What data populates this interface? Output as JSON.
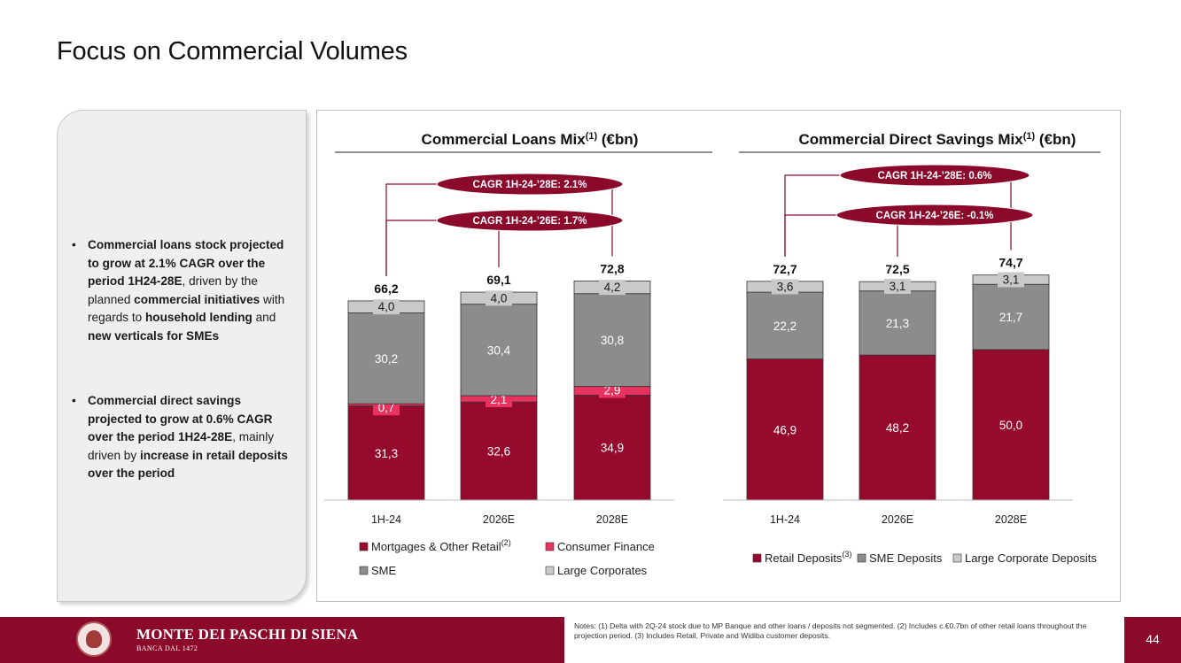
{
  "page": {
    "title": "Focus on Commercial Volumes",
    "page_number": "44"
  },
  "left_panel": {
    "bullets": [
      [
        {
          "text": "Commercial loans stock projected to grow at 2.1% CAGR over the period 1H24-28E",
          "bold": true
        },
        {
          "text": ", driven by the planned ",
          "bold": false
        },
        {
          "text": "commercial initiatives",
          "bold": true
        },
        {
          "text": " with regards to ",
          "bold": false
        },
        {
          "text": "household lending",
          "bold": true
        },
        {
          "text": " and ",
          "bold": false
        },
        {
          "text": "new verticals for SMEs",
          "bold": true
        }
      ],
      [
        {
          "text": "Commercial direct savings projected to grow at 0.6% CAGR over the period 1H24-28E",
          "bold": true
        },
        {
          "text": ", mainly driven by ",
          "bold": false
        },
        {
          "text": "increase in retail deposits over the period",
          "bold": true
        }
      ]
    ]
  },
  "colors": {
    "retail": "#960a2e",
    "consumer": "#e8335f",
    "sme": "#8c8c8c",
    "large": "#c9c9c9",
    "cagr_pill": "#8b0a2c"
  },
  "chart_data": [
    {
      "type": "bar",
      "stacked": true,
      "title": "Commercial Loans Mix",
      "title_superscript": "(1)",
      "title_suffix": " (€bn)",
      "categories": [
        "1H-24",
        "2026E",
        "2028E"
      ],
      "totals": [
        "66,2",
        "69,1",
        "72,8"
      ],
      "series": [
        {
          "name": "Mortgages & Other Retail",
          "name_superscript": "(2)",
          "color": "#960a2e",
          "values": [
            31.3,
            32.6,
            34.9
          ],
          "labels": [
            "31,3",
            "32,6",
            "34,9"
          ]
        },
        {
          "name": "Consumer Finance",
          "color": "#e8335f",
          "values": [
            0.7,
            2.1,
            2.9
          ],
          "labels": [
            "0,7",
            "2,1",
            "2,9"
          ]
        },
        {
          "name": "SME",
          "color": "#8c8c8c",
          "values": [
            30.2,
            30.4,
            30.8
          ],
          "labels": [
            "30,2",
            "30,4",
            "30,8"
          ]
        },
        {
          "name": "Large Corporates",
          "color": "#c9c9c9",
          "values": [
            4.0,
            4.0,
            4.2
          ],
          "labels": [
            "4,0",
            "4,0",
            "4,2"
          ]
        }
      ],
      "cagr": [
        {
          "label": "CAGR 1H-24-’28E: 2.1%",
          "from": 0,
          "to": 2
        },
        {
          "label": "CAGR 1H-24-’26E: 1.7%",
          "from": 0,
          "to": 1
        }
      ],
      "legend_position": "bottom",
      "ylim": [
        0,
        75
      ]
    },
    {
      "type": "bar",
      "stacked": true,
      "title": "Commercial Direct Savings Mix",
      "title_superscript": "(1)",
      "title_suffix": " (€bn)",
      "categories": [
        "1H-24",
        "2026E",
        "2028E"
      ],
      "totals": [
        "72,7",
        "72,5",
        "74,7"
      ],
      "series": [
        {
          "name": "Retail Deposits",
          "name_superscript": "(3)",
          "color": "#960a2e",
          "values": [
            46.9,
            48.2,
            50.0
          ],
          "labels": [
            "46,9",
            "48,2",
            "50,0"
          ]
        },
        {
          "name": "SME Deposits",
          "color": "#8c8c8c",
          "values": [
            22.2,
            21.3,
            21.7
          ],
          "labels": [
            "22,2",
            "21,3",
            "21,7"
          ]
        },
        {
          "name": "Large Corporate Deposits",
          "color": "#c9c9c9",
          "values": [
            3.6,
            3.1,
            3.1
          ],
          "labels": [
            "3,6",
            "3,1",
            "3,1"
          ]
        }
      ],
      "cagr": [
        {
          "label": "CAGR 1H-24-’28E: 0.6%",
          "from": 0,
          "to": 2
        },
        {
          "label": "CAGR 1H-24-’26E: -0.1%",
          "from": 0,
          "to": 1
        }
      ],
      "legend_position": "bottom",
      "ylim": [
        0,
        75
      ]
    }
  ],
  "footer": {
    "brand": "MONTE DEI PASCHI DI SIENA",
    "brand_sub": "BANCA DAL 1472",
    "logo_icon": "seal-icon",
    "notes": "Notes: (1) Delta with 2Q-24 stock due to MP Banque and other loans / deposits not segmented. (2) Includes c.€0.7bn of other retail loans throughout the projection period. (3) Includes Retail, Private and Widiba customer deposits."
  }
}
